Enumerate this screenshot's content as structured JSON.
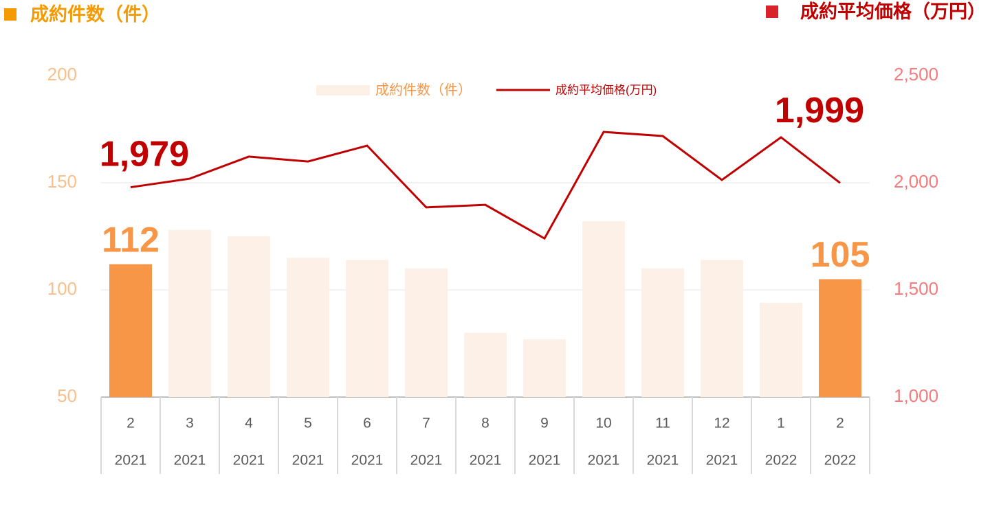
{
  "chart_data": {
    "type": "bar_line",
    "y_label": "成約件数（件）",
    "y2_label": "成約平均価格（万円）",
    "categories": [
      "2",
      "3",
      "4",
      "5",
      "6",
      "7",
      "8",
      "9",
      "10",
      "11",
      "12",
      "1",
      "2"
    ],
    "category_years": [
      "2021",
      "2021",
      "2021",
      "2021",
      "2021",
      "2021",
      "2021",
      "2021",
      "2021",
      "2021",
      "2021",
      "2022",
      "2022"
    ],
    "series": [
      {
        "name": "成約件数（件）",
        "type": "bar",
        "color": "#fdf0e6",
        "highlight_color": "#f79646",
        "values": [
          112,
          128,
          125,
          115,
          114,
          110,
          80,
          77,
          132,
          110,
          114,
          94,
          105
        ],
        "value_labels": [
          "112",
          null,
          null,
          null,
          null,
          null,
          null,
          null,
          null,
          null,
          null,
          null,
          "105"
        ]
      },
      {
        "name": "成約平均価格(万円)",
        "type": "line",
        "axis": "y2",
        "color": "#c00000",
        "values": [
          1979,
          2019,
          2122,
          2099,
          2173,
          1885,
          1897,
          1740,
          2237,
          2218,
          2013,
          2212,
          1999
        ],
        "value_labels": [
          "1,979",
          null,
          null,
          null,
          null,
          null,
          null,
          null,
          null,
          null,
          null,
          null,
          "1,999"
        ]
      }
    ],
    "ylim": [
      50,
      200
    ],
    "yticks": [
      50,
      100,
      150,
      200
    ],
    "y2lim": [
      1000,
      2500
    ],
    "y2ticks": [
      {
        "value": 1000,
        "label": "1,000"
      },
      {
        "value": 1500,
        "label": "1,500"
      },
      {
        "value": 2000,
        "label": "2,000"
      },
      {
        "value": 2500,
        "label": "2,500"
      }
    ],
    "grid": true
  }
}
